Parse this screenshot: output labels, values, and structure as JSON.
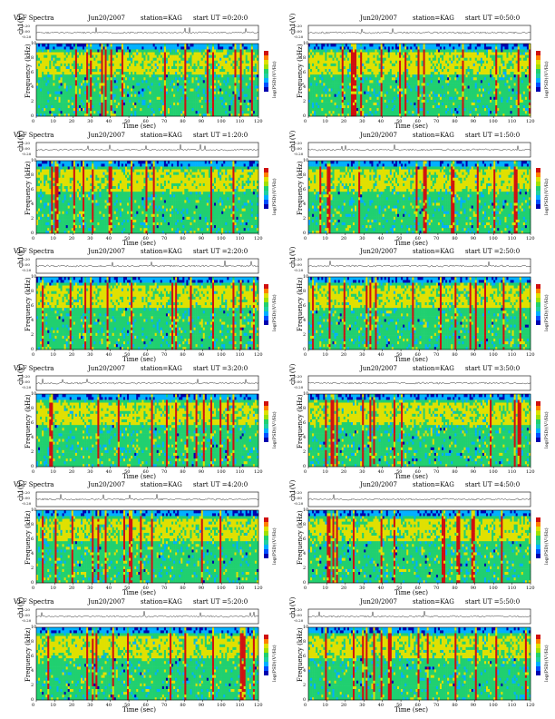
{
  "page": {
    "label_left_title": "VLF Spectra",
    "station": "station=KAG",
    "xlabel": "Time (sec)",
    "ylabel_line": "ch1(V)",
    "ylabel_freq_top": "ch1",
    "ylabel_freq": "Frequency (kHz)",
    "colorbar_label": "log(PSD)(V²/Hz)"
  },
  "chart_data": [
    {
      "type": "heatmap",
      "title": "VLF Spectra",
      "date": "Jun20/2007",
      "station": "station=KAG",
      "start_ut": "start UT =0:20:0",
      "xlabel": "Time (sec)",
      "ylabel": "Frequency (kHz)",
      "xlim": [
        0,
        120
      ],
      "ylim": [
        0,
        10
      ],
      "xticks": [
        0,
        10,
        20,
        30,
        40,
        50,
        60,
        70,
        80,
        90,
        100,
        110,
        120
      ],
      "yticks": [
        0,
        2,
        4,
        6,
        8,
        10
      ],
      "line_ylabel": "ch1(V)",
      "line_yticks": [
        "0.20",
        "0.00",
        "-0.20"
      ],
      "colorbar": "log(PSD)(V²/Hz)"
    },
    {
      "type": "heatmap",
      "title": "",
      "date": "Jun20/2007",
      "station": "station=KAG",
      "start_ut": "start UT =0:50:0",
      "xlabel": "Time (sec)",
      "ylabel": "Frequency (kHz)",
      "xlim": [
        0,
        120
      ],
      "ylim": [
        0,
        10
      ],
      "xticks": [
        0,
        10,
        20,
        30,
        40,
        50,
        60,
        70,
        80,
        90,
        100,
        110,
        120
      ],
      "yticks": [
        0,
        2,
        4,
        6,
        8,
        10
      ],
      "line_ylabel": "ch1(V)",
      "line_yticks": [
        "0.20",
        "0.00",
        "-0.20"
      ],
      "colorbar": "log(PSD)(V²/Hz)"
    },
    {
      "type": "heatmap",
      "title": "VLF Spectra",
      "date": "Jun20/2007",
      "station": "station=KAG",
      "start_ut": "start UT =1:20:0",
      "xlabel": "Time (sec)",
      "ylabel": "Frequency (kHz)",
      "xlim": [
        0,
        120
      ],
      "ylim": [
        0,
        10
      ],
      "xticks": [
        0,
        10,
        20,
        30,
        40,
        50,
        60,
        70,
        80,
        90,
        100,
        110,
        120
      ],
      "yticks": [
        0,
        2,
        4,
        6,
        8,
        10
      ],
      "line_ylabel": "ch1(V)",
      "line_yticks": [
        "0.20",
        "0.00",
        "-0.20"
      ],
      "colorbar": "log(PSD)(V²/Hz)"
    },
    {
      "type": "heatmap",
      "title": "",
      "date": "Jun20/2007",
      "station": "station=KAG",
      "start_ut": "start UT =1:50:0",
      "xlabel": "Time (sec)",
      "ylabel": "Frequency (kHz)",
      "xlim": [
        0,
        120
      ],
      "ylim": [
        0,
        10
      ],
      "xticks": [
        0,
        10,
        20,
        30,
        40,
        50,
        60,
        70,
        80,
        90,
        100,
        110,
        120
      ],
      "yticks": [
        0,
        2,
        4,
        6,
        8,
        10
      ],
      "line_ylabel": "ch1(V)",
      "line_yticks": [
        "0.20",
        "0.00",
        "-0.20"
      ],
      "colorbar": "log(PSD)(V²/Hz)"
    },
    {
      "type": "heatmap",
      "title": "VLF Spectra",
      "date": "Jun20/2007",
      "station": "station=KAG",
      "start_ut": "start UT =2:20:0",
      "xlabel": "Time (sec)",
      "ylabel": "Frequency (kHz)",
      "xlim": [
        0,
        120
      ],
      "ylim": [
        0,
        10
      ],
      "xticks": [
        0,
        10,
        20,
        30,
        40,
        50,
        60,
        70,
        80,
        90,
        100,
        110,
        120
      ],
      "yticks": [
        0,
        2,
        4,
        6,
        8,
        10
      ],
      "line_ylabel": "ch1(V)",
      "line_yticks": [
        "0.20",
        "0.00",
        "-0.20"
      ],
      "colorbar": "log(PSD)(V²/Hz)"
    },
    {
      "type": "heatmap",
      "title": "",
      "date": "Jun20/2007",
      "station": "station=KAG",
      "start_ut": "start UT =2:50:0",
      "xlabel": "Time (sec)",
      "ylabel": "Frequency (kHz)",
      "xlim": [
        0,
        120
      ],
      "ylim": [
        0,
        10
      ],
      "xticks": [
        0,
        10,
        20,
        30,
        40,
        50,
        60,
        70,
        80,
        90,
        100,
        110,
        120
      ],
      "yticks": [
        0,
        2,
        4,
        6,
        8,
        10
      ],
      "line_ylabel": "ch1(V)",
      "line_yticks": [
        "0.20",
        "0.00",
        "-0.20"
      ],
      "colorbar": "log(PSD)(V²/Hz)"
    },
    {
      "type": "heatmap",
      "title": "VLF Spectra",
      "date": "Jun20/2007",
      "station": "station=KAG",
      "start_ut": "start UT =3:20:0",
      "xlabel": "Time (sec)",
      "ylabel": "Frequency (kHz)",
      "xlim": [
        0,
        120
      ],
      "ylim": [
        0,
        10
      ],
      "xticks": [
        0,
        10,
        20,
        30,
        40,
        50,
        60,
        70,
        80,
        90,
        100,
        110,
        120
      ],
      "yticks": [
        0,
        2,
        4,
        6,
        8,
        10
      ],
      "line_ylabel": "ch1(V)",
      "line_yticks": [
        "0.20",
        "0.00",
        "-0.20"
      ],
      "colorbar": "log(PSD)(V²/Hz)"
    },
    {
      "type": "heatmap",
      "title": "",
      "date": "Jun20/2007",
      "station": "station=KAG",
      "start_ut": "start UT =3:50:0",
      "xlabel": "Time (sec)",
      "ylabel": "Frequency (kHz)",
      "xlim": [
        0,
        120
      ],
      "ylim": [
        0,
        10
      ],
      "xticks": [
        0,
        10,
        20,
        30,
        40,
        50,
        60,
        70,
        80,
        90,
        100,
        110,
        120
      ],
      "yticks": [
        0,
        2,
        4,
        6,
        8,
        10
      ],
      "line_ylabel": "ch1(V)",
      "line_yticks": [
        "0.20",
        "0.00",
        "-0.20"
      ],
      "colorbar": "log(PSD)(V²/Hz)"
    },
    {
      "type": "heatmap",
      "title": "VLF Spectra",
      "date": "Jun20/2007",
      "station": "station=KAG",
      "start_ut": "start UT =4:20:0",
      "xlabel": "Time (sec)",
      "ylabel": "Frequency (kHz)",
      "xlim": [
        0,
        120
      ],
      "ylim": [
        0,
        10
      ],
      "xticks": [
        0,
        10,
        20,
        30,
        40,
        50,
        60,
        70,
        80,
        90,
        100,
        110,
        120
      ],
      "yticks": [
        0,
        2,
        4,
        6,
        8,
        10
      ],
      "line_ylabel": "ch1(V)",
      "line_yticks": [
        "0.20",
        "0.00",
        "-0.20"
      ],
      "colorbar": "log(PSD)(V²/Hz)"
    },
    {
      "type": "heatmap",
      "title": "",
      "date": "Jun20/2007",
      "station": "station=KAG",
      "start_ut": "start UT =4:50:0",
      "xlabel": "Time (sec)",
      "ylabel": "Frequency (kHz)",
      "xlim": [
        0,
        120
      ],
      "ylim": [
        0,
        10
      ],
      "xticks": [
        0,
        10,
        20,
        30,
        40,
        50,
        60,
        70,
        80,
        90,
        100,
        110,
        120
      ],
      "yticks": [
        0,
        2,
        4,
        6,
        8,
        10
      ],
      "line_ylabel": "ch1(V)",
      "line_yticks": [
        "0.20",
        "0.00",
        "-0.20"
      ],
      "colorbar": "log(PSD)(V²/Hz)"
    },
    {
      "type": "heatmap",
      "title": "VLF Spectra",
      "date": "Jun20/2007",
      "station": "station=KAG",
      "start_ut": "start UT =5:20:0",
      "xlabel": "Time (sec)",
      "ylabel": "Frequency (kHz)",
      "xlim": [
        0,
        120
      ],
      "ylim": [
        0,
        10
      ],
      "xticks": [
        0,
        10,
        20,
        30,
        40,
        50,
        60,
        70,
        80,
        90,
        100,
        110,
        120
      ],
      "yticks": [
        0,
        2,
        4,
        6,
        8,
        10
      ],
      "line_ylabel": "ch1(V)",
      "line_yticks": [
        "0.20",
        "0.00",
        "-0.20"
      ],
      "colorbar": "log(PSD)(V²/Hz)"
    },
    {
      "type": "heatmap",
      "title": "",
      "date": "Jun20/2007",
      "station": "station=KAG",
      "start_ut": "start UT =5:50:0",
      "xlabel": "Time (sec)",
      "ylabel": "Frequency (kHz)",
      "xlim": [
        0,
        120
      ],
      "ylim": [
        0,
        10
      ],
      "xticks": [
        0,
        10,
        20,
        30,
        40,
        50,
        60,
        70,
        80,
        90,
        100,
        110,
        120
      ],
      "yticks": [
        0,
        2,
        4,
        6,
        8,
        10
      ],
      "line_ylabel": "ch1(V)",
      "line_yticks": [
        "0.20",
        "0.00",
        "-0.20"
      ],
      "colorbar": "log(PSD)(V²/Hz)"
    }
  ],
  "colors": {
    "low": "#0000b0",
    "mid_low": "#00b0ff",
    "mid": "#20d070",
    "mid_high": "#e0e000",
    "high": "#d01010"
  }
}
